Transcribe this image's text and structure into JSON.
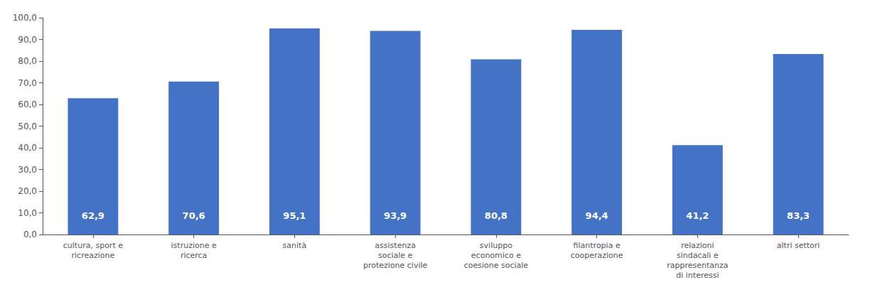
{
  "chart_data": {
    "type": "bar",
    "categories": [
      "cultura, sport e\nricreazione",
      "istruzione e\nricerca",
      "sanità",
      "assistenza\nsociale e\nprotezione civile",
      "sviluppo\neconomico e\ncoesione sociale",
      "filantropia e\ncooperazione",
      "relazioni\nsindacali e\nrappresentanza\ndi interessi",
      "altri settori"
    ],
    "values": [
      62.9,
      70.6,
      95.1,
      93.9,
      80.8,
      94.4,
      41.2,
      83.3
    ],
    "value_labels": [
      "62,9",
      "70,6",
      "95,1",
      "93,9",
      "80,8",
      "94,4",
      "41,2",
      "83,3"
    ],
    "data_labels": true,
    "color": "#4472C4",
    "ylim": [
      0,
      100
    ],
    "yticks": [
      {
        "value": 0,
        "label": "0,0"
      },
      {
        "value": 10,
        "label": "10,0"
      },
      {
        "value": 20,
        "label": "20,0"
      },
      {
        "value": 30,
        "label": "30,0"
      },
      {
        "value": 40,
        "label": "40,0"
      },
      {
        "value": 50,
        "label": "50,0"
      },
      {
        "value": 60,
        "label": "60,0"
      },
      {
        "value": 70,
        "label": "70,0"
      },
      {
        "value": 80,
        "label": "80,0"
      },
      {
        "value": 90,
        "label": "90,0"
      },
      {
        "value": 100,
        "label": "100,0"
      }
    ],
    "grid": false
  }
}
